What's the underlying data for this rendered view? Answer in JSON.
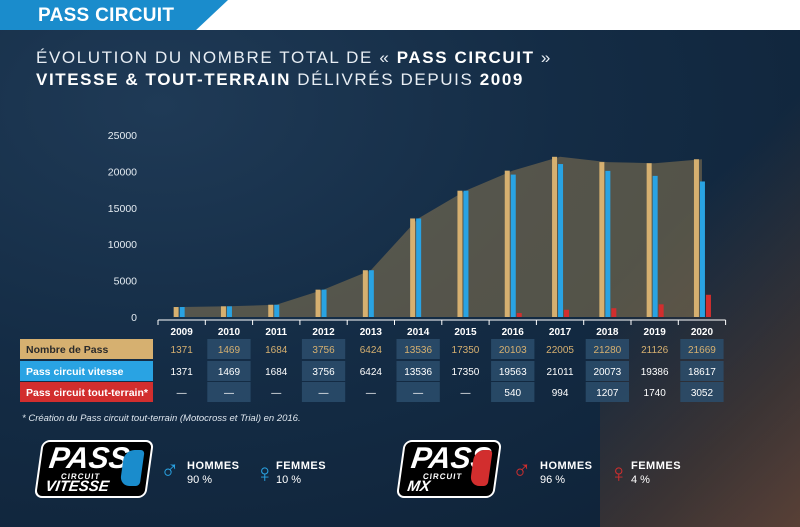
{
  "header": {
    "title": "PASS CIRCUIT"
  },
  "heading": {
    "line1_a": "ÉVOLUTION DU NOMBRE TOTAL DE « ",
    "line1_b": "PASS CIRCUIT",
    "line1_c": " »",
    "line2_a": "VITESSE & TOUT-TERRAIN",
    "line2_b": " DÉLIVRÉS DEPUIS ",
    "line2_c": "2009"
  },
  "colors": {
    "total": "#d6b070",
    "vitesse": "#29a3e3",
    "tout_terrain": "#d22e2e",
    "area": "#8a7650"
  },
  "chart_data": {
    "type": "bar",
    "categories": [
      "2009",
      "2010",
      "2011",
      "2012",
      "2013",
      "2014",
      "2015",
      "2016",
      "2017",
      "2018",
      "2019",
      "2020"
    ],
    "series": [
      {
        "name": "Nombre de Pass",
        "values": [
          1371,
          1469,
          1684,
          3756,
          6424,
          13536,
          17350,
          20103,
          22005,
          21280,
          21126,
          21669
        ]
      },
      {
        "name": "Pass circuit vitesse",
        "values": [
          1371,
          1469,
          1684,
          3756,
          6424,
          13536,
          17350,
          19563,
          21011,
          20073,
          19386,
          18617
        ]
      },
      {
        "name": "Pass circuit tout-terrain*",
        "values": [
          null,
          null,
          null,
          null,
          null,
          null,
          null,
          540,
          994,
          1207,
          1740,
          3052
        ]
      }
    ],
    "ylim": [
      0,
      25000
    ],
    "yticks": [
      "25000",
      "20000",
      "15000",
      "10000",
      "5000",
      "0"
    ],
    "grid": false,
    "table": {
      "rows": [
        {
          "label": "Nombre de Pass",
          "cells": [
            "1371",
            "1469",
            "1684",
            "3756",
            "6424",
            "13536",
            "17350",
            "20103",
            "22005",
            "21280",
            "21126",
            "21669"
          ]
        },
        {
          "label": "Pass circuit vitesse",
          "cells": [
            "1371",
            "1469",
            "1684",
            "3756",
            "6424",
            "13536",
            "17350",
            "19563",
            "21011",
            "20073",
            "19386",
            "18617"
          ]
        },
        {
          "label": "Pass circuit tout-terrain*",
          "cells": [
            "—",
            "—",
            "—",
            "—",
            "—",
            "—",
            "—",
            "540",
            "994",
            "1207",
            "1740",
            "3052"
          ]
        }
      ]
    }
  },
  "footnote": "* Création du Pass circuit tout-terrain (Motocross et Trial) en 2016.",
  "logos": {
    "vitesse": {
      "big": "PASS",
      "small": "CIRCUIT",
      "sub": "VITESSE"
    },
    "mx": {
      "big": "PASS",
      "small": "CIRCUIT",
      "sub": "MX"
    }
  },
  "stats": {
    "vitesse": {
      "hommes_label": "HOMMES",
      "hommes_value": "90 %",
      "femmes_label": "FEMMES",
      "femmes_value": "10 %"
    },
    "mx": {
      "hommes_label": "HOMMES",
      "hommes_value": "96 %",
      "femmes_label": "FEMMES",
      "femmes_value": "4 %"
    }
  },
  "symbols": {
    "male": "♂",
    "female": "♀"
  }
}
